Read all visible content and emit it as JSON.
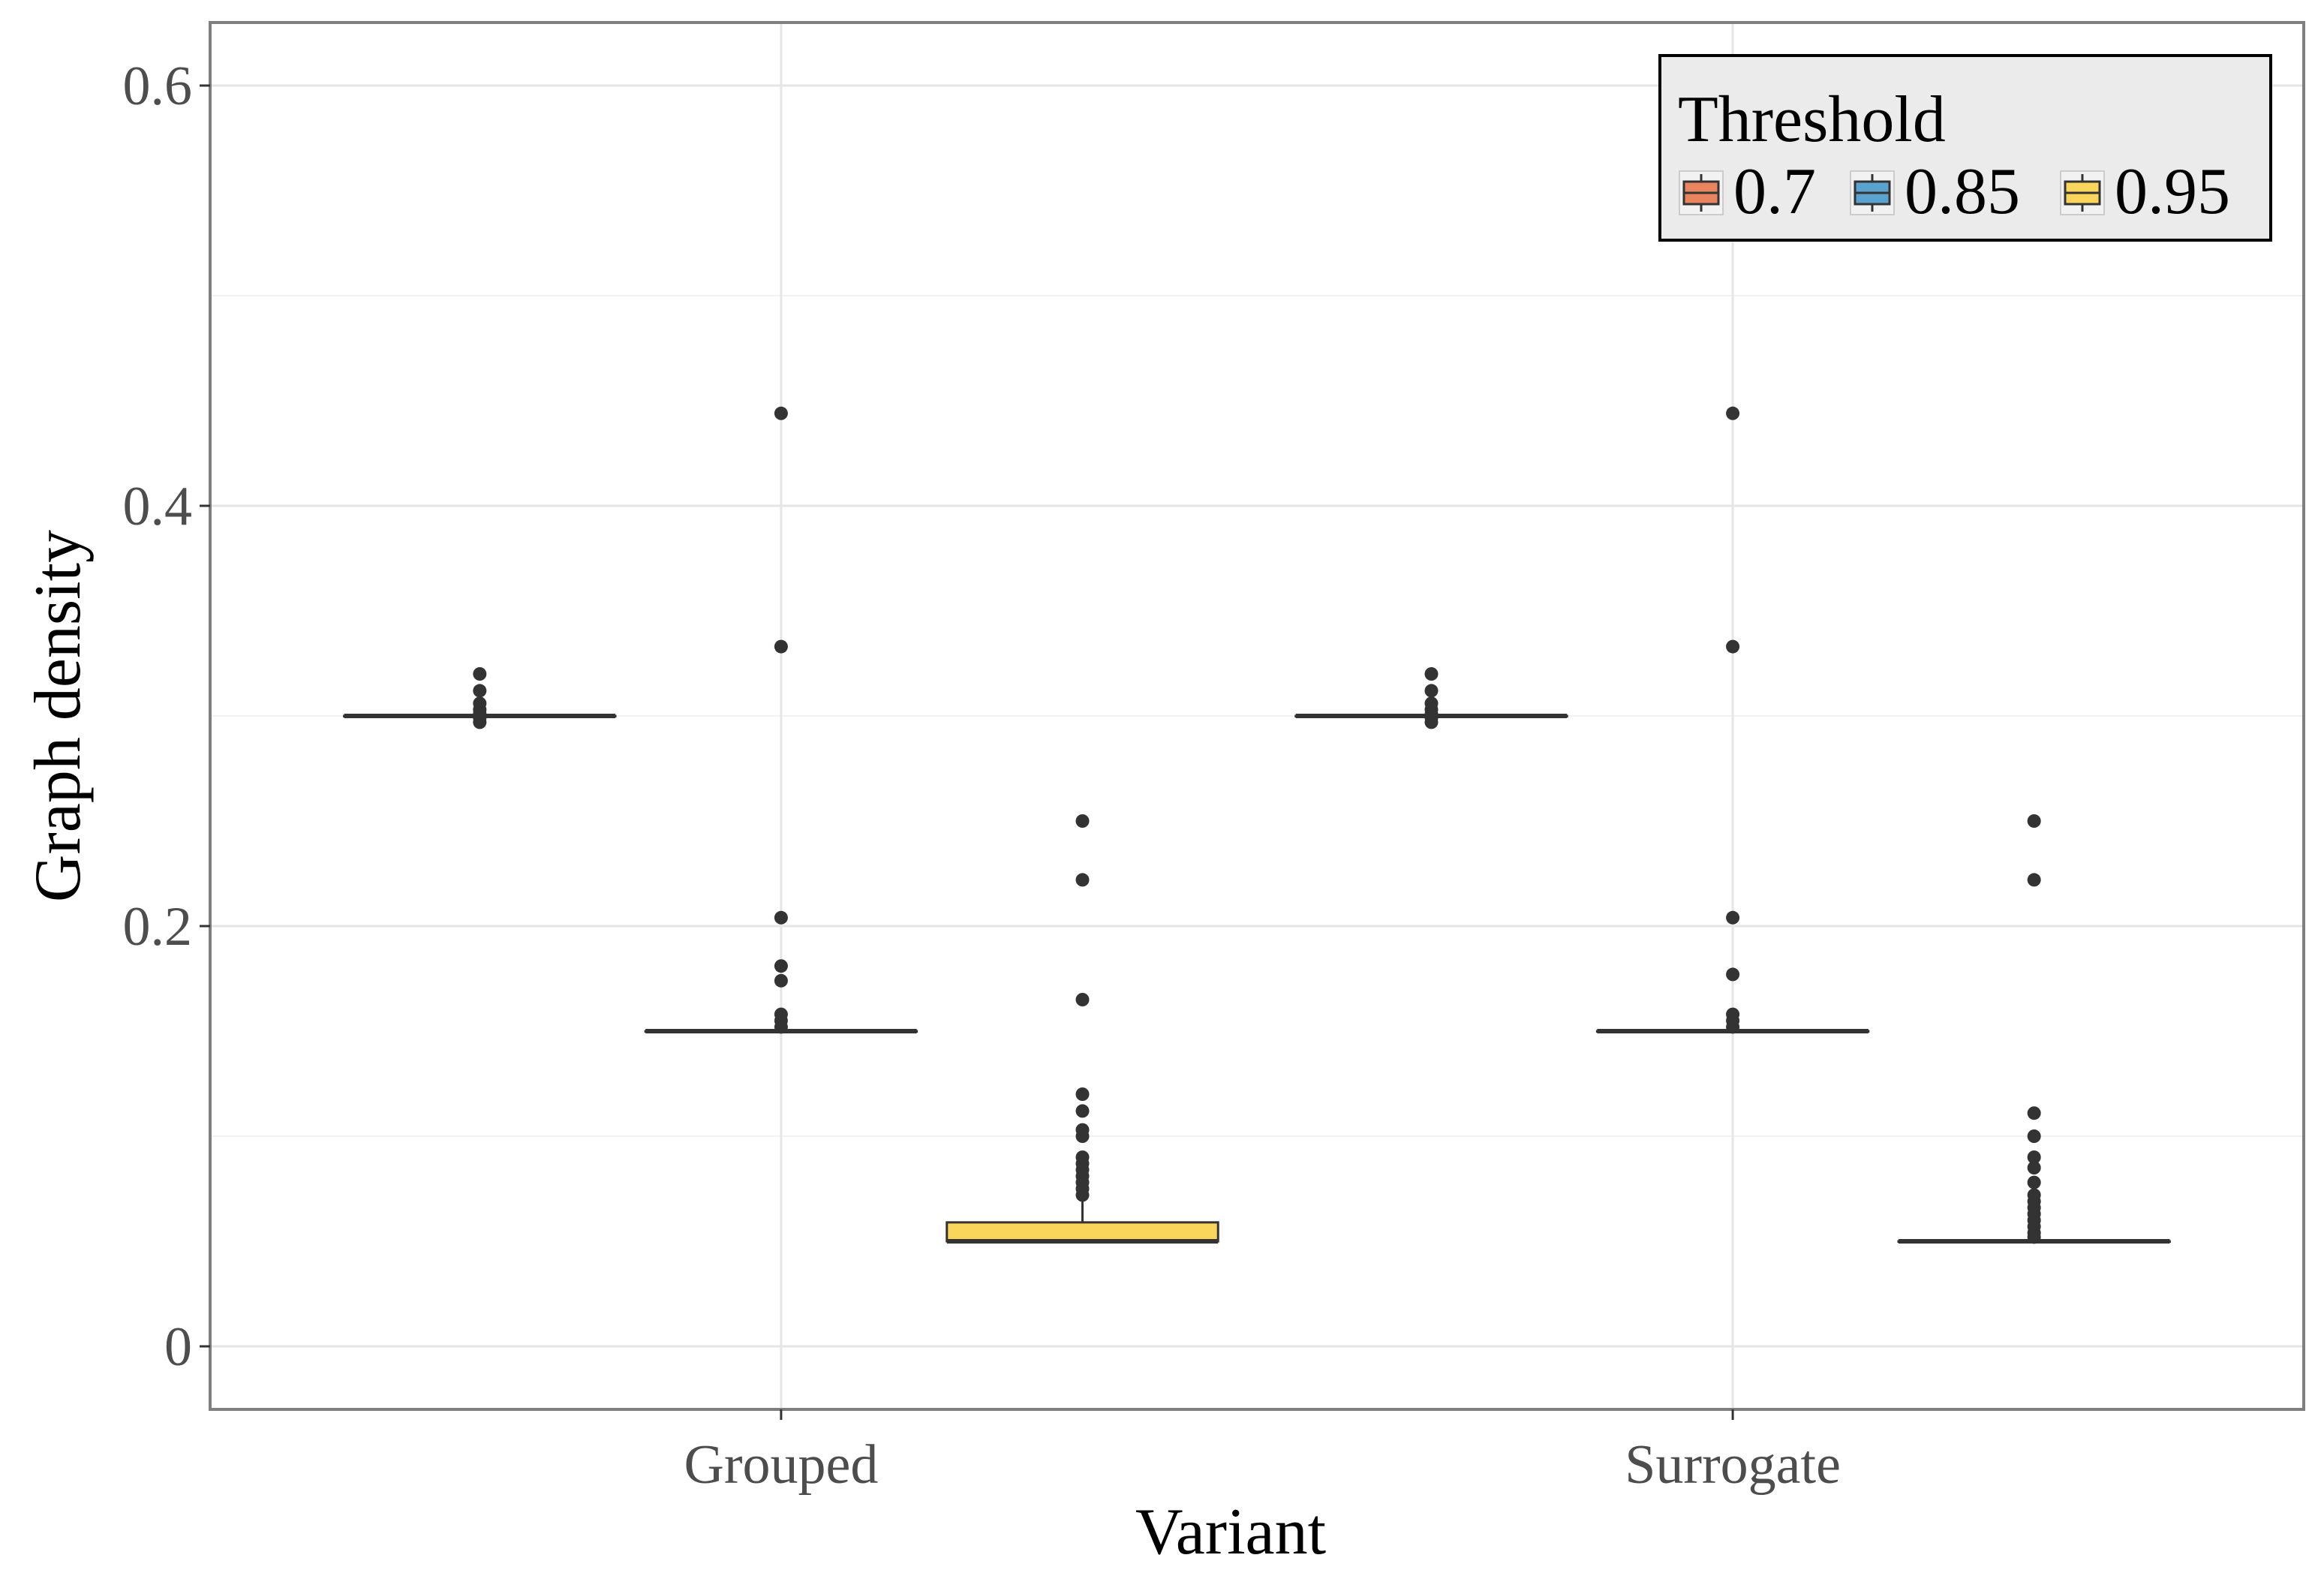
{
  "chart_data": {
    "type": "boxplot",
    "title": "",
    "xlabel": "Variant",
    "ylabel": "Graph density",
    "categories": [
      "Grouped",
      "Surrogate"
    ],
    "yticks": [
      "0",
      "0.2",
      "0.4",
      "0.6"
    ],
    "ytick_values": [
      0,
      0.2,
      0.4,
      0.6
    ],
    "ylim": [
      -0.03,
      0.63
    ],
    "grid": true,
    "legend": {
      "title": "Threshold",
      "position": "top-right",
      "entries": [
        "0.7",
        "0.85",
        "0.95"
      ]
    },
    "series": [
      {
        "name": "0.7",
        "color": "#E8845E",
        "boxes": [
          {
            "category": "Grouped",
            "min": 0.3,
            "q1": 0.3,
            "median": 0.3,
            "q3": 0.3,
            "max": 0.3,
            "outliers": [
              0.32,
              0.312,
              0.306,
              0.303,
              0.301,
              0.299,
              0.297
            ]
          },
          {
            "category": "Surrogate",
            "min": 0.3,
            "q1": 0.3,
            "median": 0.3,
            "q3": 0.3,
            "max": 0.3,
            "outliers": [
              0.32,
              0.312,
              0.306,
              0.303,
              0.301,
              0.299,
              0.297
            ]
          }
        ]
      },
      {
        "name": "0.85",
        "color": "#5BA3CF",
        "boxes": [
          {
            "category": "Grouped",
            "min": 0.15,
            "q1": 0.15,
            "median": 0.15,
            "q3": 0.15,
            "max": 0.15,
            "outliers": [
              0.444,
              0.333,
              0.204,
              0.181,
              0.174,
              0.158,
              0.155,
              0.152
            ]
          },
          {
            "category": "Surrogate",
            "min": 0.15,
            "q1": 0.15,
            "median": 0.15,
            "q3": 0.15,
            "max": 0.15,
            "outliers": [
              0.444,
              0.333,
              0.204,
              0.177,
              0.158,
              0.155,
              0.152
            ]
          }
        ]
      },
      {
        "name": "0.95",
        "color": "#FAD55C",
        "boxes": [
          {
            "category": "Grouped",
            "min": 0.05,
            "q1": 0.05,
            "median": 0.05,
            "q3": 0.059,
            "max": 0.069,
            "outliers": [
              0.25,
              0.222,
              0.165,
              0.12,
              0.112,
              0.103,
              0.1,
              0.09,
              0.087,
              0.084,
              0.081,
              0.078,
              0.075,
              0.072
            ]
          },
          {
            "category": "Surrogate",
            "min": 0.05,
            "q1": 0.05,
            "median": 0.05,
            "q3": 0.05,
            "max": 0.05,
            "outliers": [
              0.25,
              0.222,
              0.111,
              0.1,
              0.09,
              0.085,
              0.078,
              0.072,
              0.069,
              0.066,
              0.063,
              0.06,
              0.057,
              0.054,
              0.052
            ]
          }
        ]
      }
    ]
  }
}
